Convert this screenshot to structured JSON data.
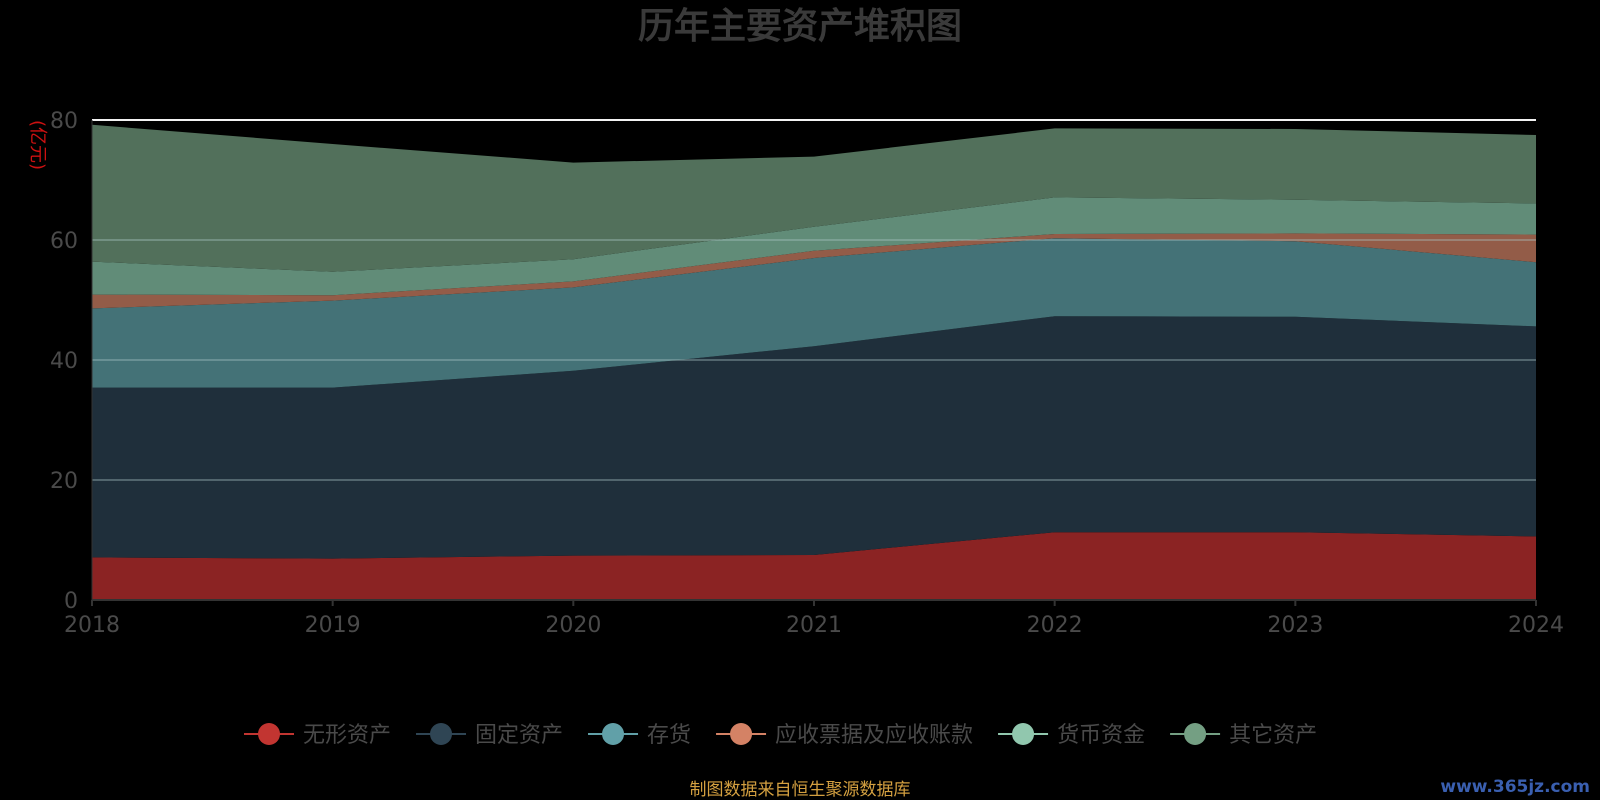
{
  "chart_data": {
    "type": "area",
    "stacked": true,
    "title": "历年主要资产堆积图",
    "unit_label": "(亿元)",
    "x": [
      "2018",
      "2019",
      "2020",
      "2021",
      "2022",
      "2023",
      "2024"
    ],
    "ylim": [
      0,
      80
    ],
    "yticks": [
      0,
      20,
      40,
      60,
      80
    ],
    "grid": true,
    "legend_position": "bottom",
    "series": [
      {
        "name": "无形资产",
        "color": "#8b2323",
        "legend_color": "#c23531",
        "values": [
          7.1,
          6.9,
          7.4,
          7.5,
          11.3,
          11.3,
          10.6
        ]
      },
      {
        "name": "固定资产",
        "color": "#1f2f3b",
        "legend_color": "#2f4554",
        "values": [
          28.3,
          28.5,
          30.8,
          34.8,
          36.0,
          35.9,
          35.0
        ]
      },
      {
        "name": "存货",
        "color": "#447277",
        "legend_color": "#61a0a8",
        "values": [
          13.2,
          14.5,
          13.9,
          14.7,
          13.0,
          12.6,
          10.7
        ]
      },
      {
        "name": "应收票据及应收账款",
        "color": "#935c48",
        "legend_color": "#d48265",
        "values": [
          2.3,
          0.9,
          1.0,
          1.2,
          0.7,
          1.3,
          4.6
        ]
      },
      {
        "name": "货币资金",
        "color": "#618c78",
        "legend_color": "#91c7ae",
        "values": [
          5.5,
          3.9,
          3.7,
          4.0,
          6.1,
          5.6,
          5.2
        ]
      },
      {
        "name": "其它资产",
        "color": "#52705b",
        "legend_color": "#749f83",
        "values": [
          22.8,
          21.3,
          16.1,
          11.7,
          11.5,
          11.8,
          11.4
        ]
      }
    ]
  },
  "footer_text": "制图数据来自恒生聚源数据库",
  "watermark_text": "www.365jz.com"
}
